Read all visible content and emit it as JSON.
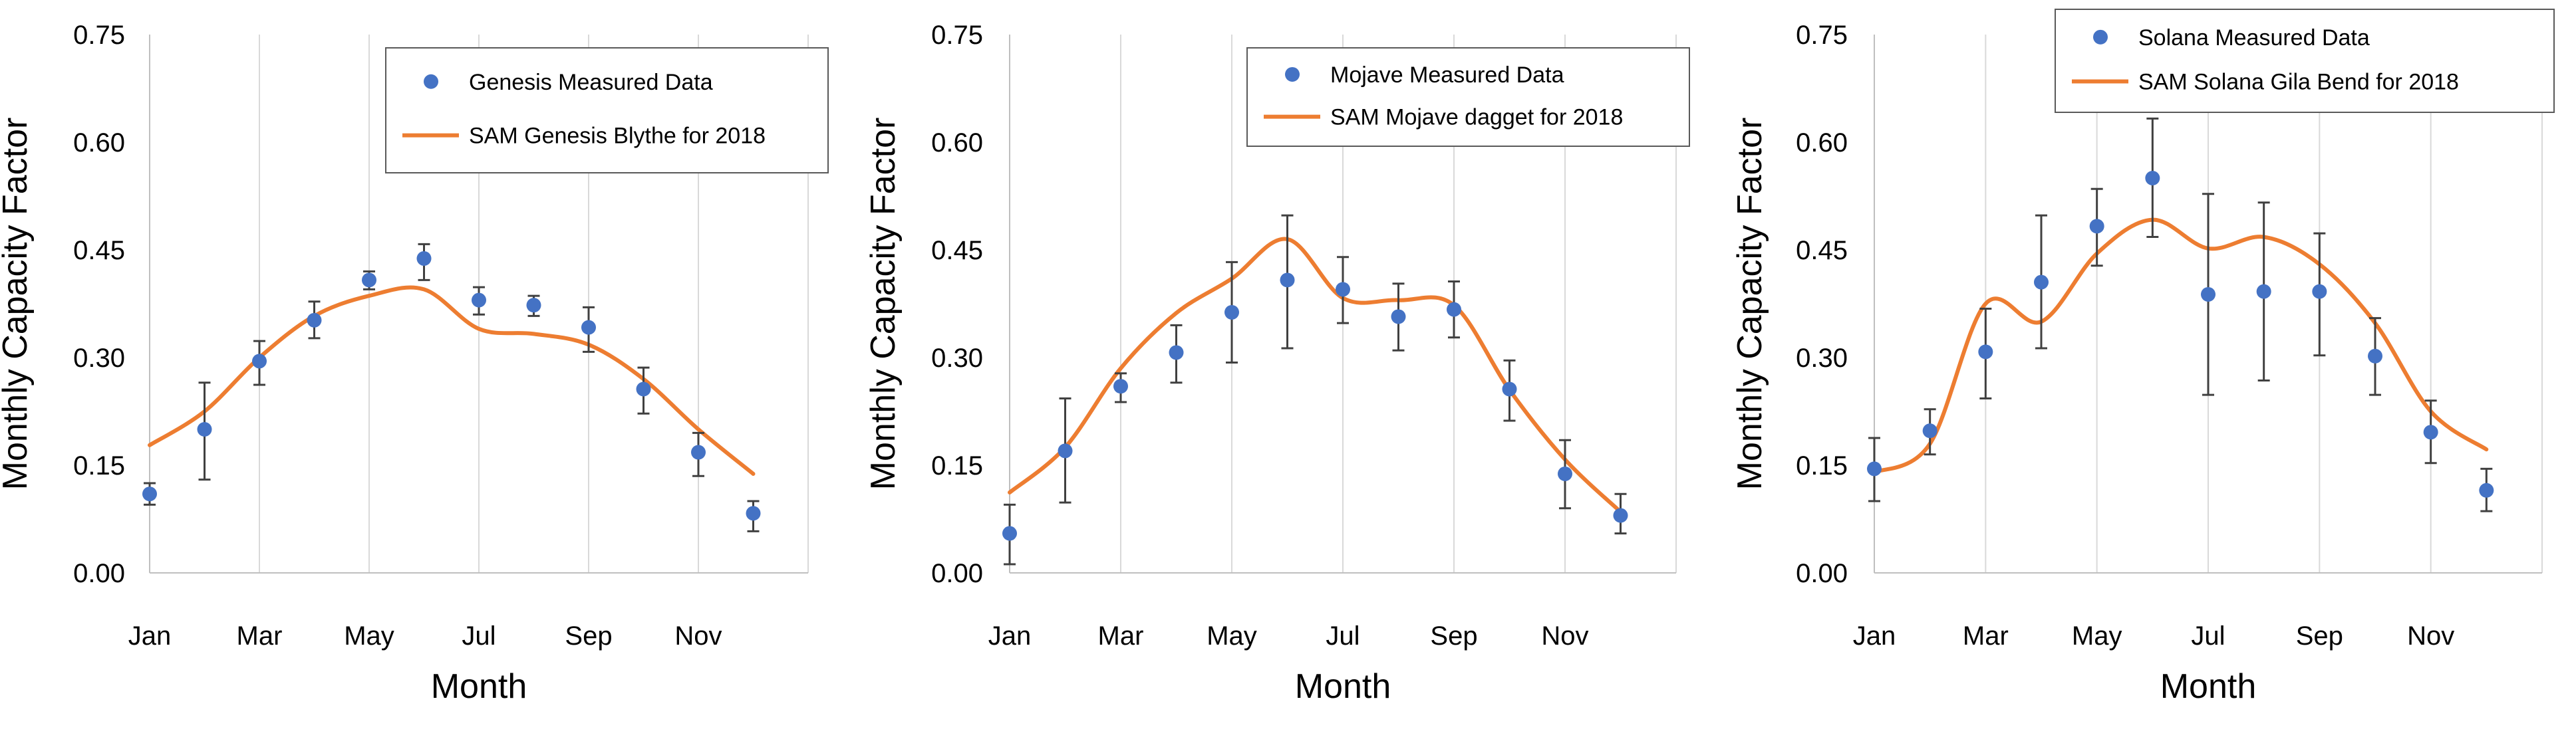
{
  "chart_data": [
    {
      "type": "line",
      "title": "",
      "xlabel": "Month",
      "ylabel": "Monthly Capacity Factor",
      "ylim": [
        0,
        0.75
      ],
      "yticks": [
        "0.00",
        "0.15",
        "0.30",
        "0.45",
        "0.60",
        "0.75"
      ],
      "ytick_values": [
        0,
        0.15,
        0.3,
        0.45,
        0.6,
        0.75
      ],
      "xticks": [
        "Jan",
        "Mar",
        "May",
        "Jul",
        "Sep",
        "Nov"
      ],
      "grid": "vertical",
      "legend_position": "top-right",
      "series": [
        {
          "name": "Genesis Measured Data",
          "kind": "scatter-errorbar",
          "color": "#4472C4",
          "values": [
            0.11,
            0.2,
            0.295,
            0.352,
            0.408,
            0.438,
            0.38,
            0.373,
            0.342,
            0.256,
            0.168,
            0.083
          ],
          "err_low": [
            0.095,
            0.13,
            0.262,
            0.327,
            0.395,
            0.408,
            0.36,
            0.358,
            0.308,
            0.222,
            0.135,
            0.058
          ],
          "err_high": [
            0.125,
            0.265,
            0.323,
            0.378,
            0.42,
            0.458,
            0.398,
            0.386,
            0.37,
            0.286,
            0.195,
            0.1
          ]
        },
        {
          "name": "SAM Genesis Blythe for 2018",
          "kind": "line",
          "color": "#ED7D31",
          "values": [
            0.178,
            0.225,
            0.3,
            0.358,
            0.386,
            0.395,
            0.34,
            0.333,
            0.318,
            0.27,
            0.2,
            0.138
          ]
        }
      ]
    },
    {
      "type": "line",
      "title": "",
      "xlabel": "Month",
      "ylabel": "Monthly Capacity Factor",
      "ylim": [
        0,
        0.75
      ],
      "yticks": [
        "0.00",
        "0.15",
        "0.30",
        "0.45",
        "0.60",
        "0.75"
      ],
      "ytick_values": [
        0,
        0.15,
        0.3,
        0.45,
        0.6,
        0.75
      ],
      "xticks": [
        "Jan",
        "Mar",
        "May",
        "Jul",
        "Sep",
        "Nov"
      ],
      "grid": "vertical",
      "legend_position": "top-right",
      "series": [
        {
          "name": "Mojave Measured Data",
          "kind": "scatter-errorbar",
          "color": "#4472C4",
          "values": [
            0.055,
            0.17,
            0.26,
            0.307,
            0.363,
            0.408,
            0.395,
            0.357,
            0.367,
            0.256,
            0.138,
            0.08
          ],
          "err_low": [
            0.012,
            0.098,
            0.238,
            0.265,
            0.293,
            0.313,
            0.348,
            0.31,
            0.328,
            0.212,
            0.09,
            0.055
          ],
          "err_high": [
            0.095,
            0.243,
            0.278,
            0.345,
            0.433,
            0.498,
            0.44,
            0.403,
            0.406,
            0.296,
            0.185,
            0.11
          ]
        },
        {
          "name": "SAM Mojave dagget for 2018",
          "kind": "line",
          "color": "#ED7D31",
          "values": [
            0.112,
            0.175,
            0.285,
            0.362,
            0.41,
            0.465,
            0.383,
            0.38,
            0.373,
            0.255,
            0.158,
            0.085
          ]
        }
      ]
    },
    {
      "type": "line",
      "title": "",
      "xlabel": "Month",
      "ylabel": "Monthly Capacity Factor",
      "ylim": [
        0,
        0.75
      ],
      "yticks": [
        "0.00",
        "0.15",
        "0.30",
        "0.45",
        "0.60",
        "0.75"
      ],
      "ytick_values": [
        0,
        0.15,
        0.3,
        0.45,
        0.6,
        0.75
      ],
      "xticks": [
        "Jan",
        "Mar",
        "May",
        "Jul",
        "Sep",
        "Nov"
      ],
      "grid": "vertical",
      "legend_position": "top-right",
      "series": [
        {
          "name": "Solana Measured Data",
          "kind": "scatter-errorbar",
          "color": "#4472C4",
          "values": [
            0.145,
            0.198,
            0.308,
            0.405,
            0.483,
            0.55,
            0.388,
            0.392,
            0.392,
            0.302,
            0.196,
            0.115
          ],
          "err_low": [
            0.1,
            0.165,
            0.243,
            0.313,
            0.428,
            0.468,
            0.248,
            0.268,
            0.303,
            0.248,
            0.153,
            0.086
          ],
          "err_high": [
            0.188,
            0.228,
            0.368,
            0.498,
            0.535,
            0.633,
            0.528,
            0.516,
            0.473,
            0.355,
            0.24,
            0.145
          ]
        },
        {
          "name": "SAM Solana Gila Bend for 2018",
          "kind": "line",
          "color": "#ED7D31",
          "values": [
            0.14,
            0.18,
            0.375,
            0.35,
            0.445,
            0.492,
            0.452,
            0.468,
            0.43,
            0.348,
            0.225,
            0.172
          ]
        }
      ]
    }
  ]
}
